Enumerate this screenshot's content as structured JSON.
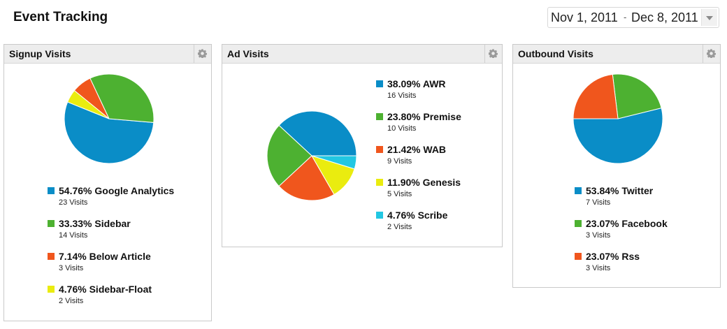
{
  "header": {
    "title": "Event Tracking",
    "date_start": "Nov 1, 2011",
    "date_separator": "-",
    "date_end": "Dec 8, 2011"
  },
  "colors": {
    "blue": "#0a8dc7",
    "green": "#4db131",
    "orange": "#f0561d",
    "yellow": "#eaec0f",
    "cyan": "#22c7e2"
  },
  "chart_data": [
    {
      "type": "pie",
      "title": "Signup Visits",
      "labels": [
        "Google Analytics",
        "Sidebar",
        "Below Article",
        "Sidebar-Float"
      ],
      "values": [
        54.76,
        33.33,
        7.14,
        4.76
      ],
      "percent_labels": [
        "54.76%",
        "33.33%",
        "7.14%",
        "4.76%"
      ],
      "visits": [
        "23 Visits",
        "14 Visits",
        "3 Visits",
        "2 Visits"
      ],
      "colors": [
        "#0a8dc7",
        "#4db131",
        "#f0561d",
        "#eaec0f"
      ]
    },
    {
      "type": "pie",
      "title": "Ad Visits",
      "labels": [
        "AWR",
        "Premise",
        "WAB",
        "Genesis",
        "Scribe"
      ],
      "values": [
        38.09,
        23.8,
        21.42,
        11.9,
        4.76
      ],
      "percent_labels": [
        "38.09%",
        "23.80%",
        "21.42%",
        "11.90%",
        "4.76%"
      ],
      "visits": [
        "16 Visits",
        "10 Visits",
        "9 Visits",
        "5 Visits",
        "2 Visits"
      ],
      "colors": [
        "#0a8dc7",
        "#4db131",
        "#f0561d",
        "#eaec0f",
        "#22c7e2"
      ]
    },
    {
      "type": "pie",
      "title": "Outbound Visits",
      "labels": [
        "Twitter",
        "Facebook",
        "Rss"
      ],
      "values": [
        53.84,
        23.07,
        23.07
      ],
      "percent_labels": [
        "53.84%",
        "23.07%",
        "23.07%"
      ],
      "visits": [
        "7 Visits",
        "3 Visits",
        "3 Visits"
      ],
      "colors": [
        "#0a8dc7",
        "#4db131",
        "#f0561d"
      ]
    }
  ]
}
